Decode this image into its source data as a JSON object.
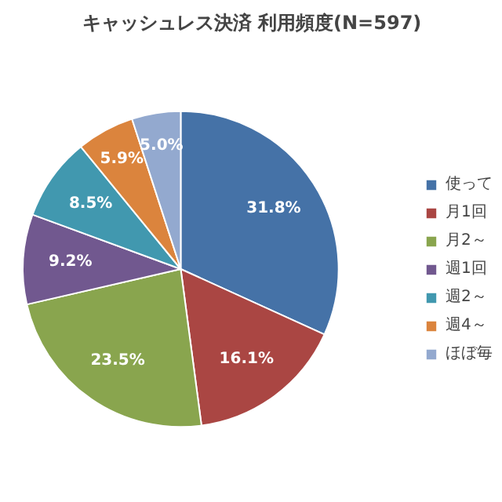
{
  "chart_data": {
    "type": "pie",
    "title": "キャッシュレス決済 利用頻度(N=597)",
    "categories": [
      "使って",
      "月1回",
      "月2～",
      "週1回",
      "週2～",
      "週4～",
      "ほぼ毎"
    ],
    "values": [
      31.8,
      16.1,
      23.5,
      9.2,
      8.5,
      5.9,
      5.0
    ],
    "colors": [
      "#4572a7",
      "#aa4643",
      "#89a54e",
      "#71588f",
      "#4198af",
      "#db843d",
      "#93a9cf"
    ],
    "value_labels": [
      "31.8%",
      "16.1%",
      "23.5%",
      "9.2%",
      "8.5%",
      "5.9%",
      "5.0%"
    ],
    "legend": "right"
  }
}
